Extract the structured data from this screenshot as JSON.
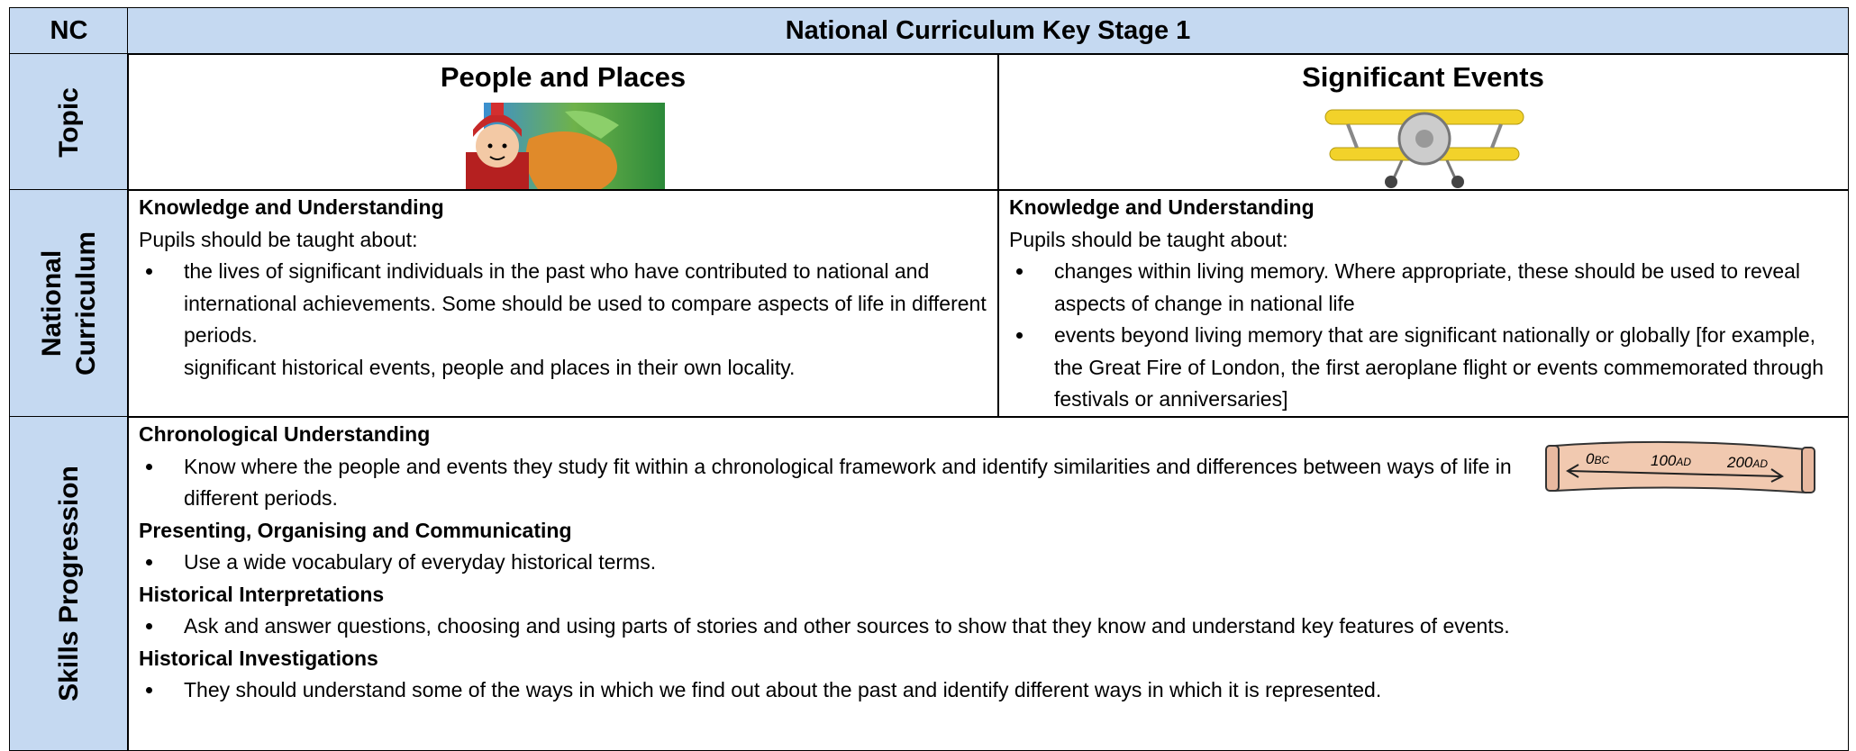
{
  "header": {
    "corner": "NC",
    "title": "National Curriculum Key Stage 1"
  },
  "topic": {
    "label": "Topic",
    "columns": [
      {
        "title": "People and Places"
      },
      {
        "title": "Significant Events"
      }
    ]
  },
  "national_curriculum": {
    "label": "National Curriculum",
    "columns": [
      {
        "heading": "Knowledge and Understanding",
        "intro": "Pupils should be taught about:",
        "items": [
          "the lives of significant individuals in the past who have contributed to national and international achievements. Some should be used to compare aspects of life in different periods."
        ],
        "continuation": "significant historical events, people and places in their own locality."
      },
      {
        "heading": "Knowledge and Understanding",
        "intro": "Pupils should be taught about:",
        "items": [
          "changes within living memory. Where appropriate, these should be used to reveal aspects of change in national life",
          "events beyond living memory that are significant nationally or globally [for example, the Great Fire of London, the first aeroplane flight or events commemorated through festivals or anniversaries]"
        ]
      }
    ]
  },
  "skills": {
    "label": "Skills Progression",
    "sections": [
      {
        "heading": "Chronological Understanding",
        "items": [
          "Know where the people and events they study fit within a chronological framework and identify similarities and differences between ways of life in different periods."
        ]
      },
      {
        "heading": "Presenting, Organising and Communicating",
        "items": [
          "Use a wide vocabulary of everyday historical terms."
        ]
      },
      {
        "heading": "Historical Interpretations",
        "items": [
          "Ask and answer questions, choosing and using parts of stories and other sources to show that they know and understand key features of events."
        ]
      },
      {
        "heading": "Historical Investigations",
        "items": [
          "They should understand some of the ways in which we find out about the past and identify different ways in which it is represented."
        ]
      }
    ],
    "timeline": [
      {
        "year": "0",
        "era": "BC"
      },
      {
        "year": "100",
        "era": "AD"
      },
      {
        "year": "200",
        "era": "AD"
      }
    ]
  }
}
